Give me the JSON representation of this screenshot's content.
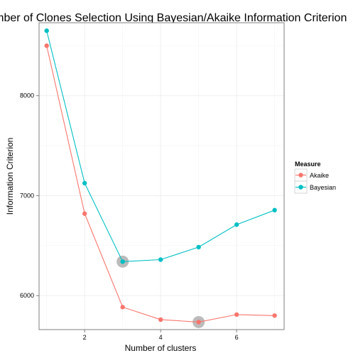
{
  "chart_data": {
    "type": "line",
    "title": "Number of Clones Selection Using Bayesian/Akaike Information Criterion",
    "xlabel": "Number of clusters",
    "ylabel": "Information Criterion",
    "x": [
      1,
      2,
      3,
      4,
      5,
      6,
      7
    ],
    "xlim": [
      0.8,
      7.25
    ],
    "ylim": [
      5660,
      8730
    ],
    "x_ticks": [
      2,
      4,
      6
    ],
    "x_tick_labels": [
      "2",
      "4",
      "6"
    ],
    "y_ticks": [
      6000,
      7000,
      8000
    ],
    "y_tick_labels": [
      "6000",
      "7000",
      "8000"
    ],
    "grid": true,
    "legend": {
      "title": "Measure",
      "placement": "right"
    },
    "series": [
      {
        "name": "Akaike",
        "color": "#F8766D",
        "values": [
          8500,
          6820,
          5885,
          5760,
          5735,
          5810,
          5800
        ],
        "highlight_x": 5
      },
      {
        "name": "Bayesian",
        "color": "#00BFC4",
        "values": [
          8650,
          7125,
          6340,
          6360,
          6485,
          6710,
          6855
        ],
        "highlight_x": 3
      }
    ],
    "highlight_color": "#BBBBBB"
  }
}
